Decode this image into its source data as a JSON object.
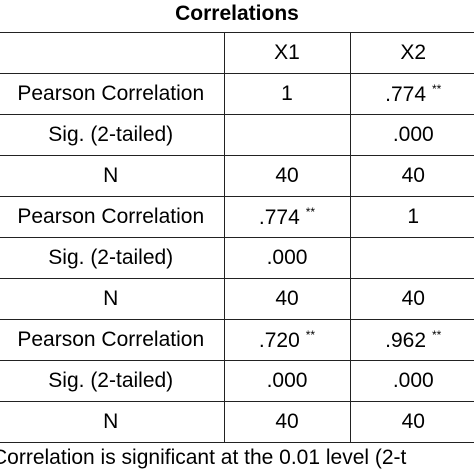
{
  "title": "Correlations",
  "columns": [
    "X1",
    "X2"
  ],
  "rows": [
    {
      "label": "Pearson Correlation",
      "x1": "1",
      "x1_flag": "",
      "x2": ".774",
      "x2_flag": "**"
    },
    {
      "label": "Sig. (2-tailed)",
      "x1": "",
      "x1_flag": "",
      "x2": ".000",
      "x2_flag": ""
    },
    {
      "label": "N",
      "x1": "40",
      "x1_flag": "",
      "x2": "40",
      "x2_flag": ""
    },
    {
      "label": "Pearson Correlation",
      "x1": ".774",
      "x1_flag": "**",
      "x2": "1",
      "x2_flag": ""
    },
    {
      "label": "Sig. (2-tailed)",
      "x1": ".000",
      "x1_flag": "",
      "x2": "",
      "x2_flag": ""
    },
    {
      "label": "N",
      "x1": "40",
      "x1_flag": "",
      "x2": "40",
      "x2_flag": ""
    },
    {
      "label": "Pearson Correlation",
      "x1": ".720",
      "x1_flag": "**",
      "x2": ".962",
      "x2_flag": "**"
    },
    {
      "label": "Sig. (2-tailed)",
      "x1": ".000",
      "x1_flag": "",
      "x2": ".000",
      "x2_flag": ""
    },
    {
      "label": "N",
      "x1": "40",
      "x1_flag": "",
      "x2": "40",
      "x2_flag": ""
    }
  ],
  "footnote": "Correlation is significant at the 0.01 level (2-t"
}
